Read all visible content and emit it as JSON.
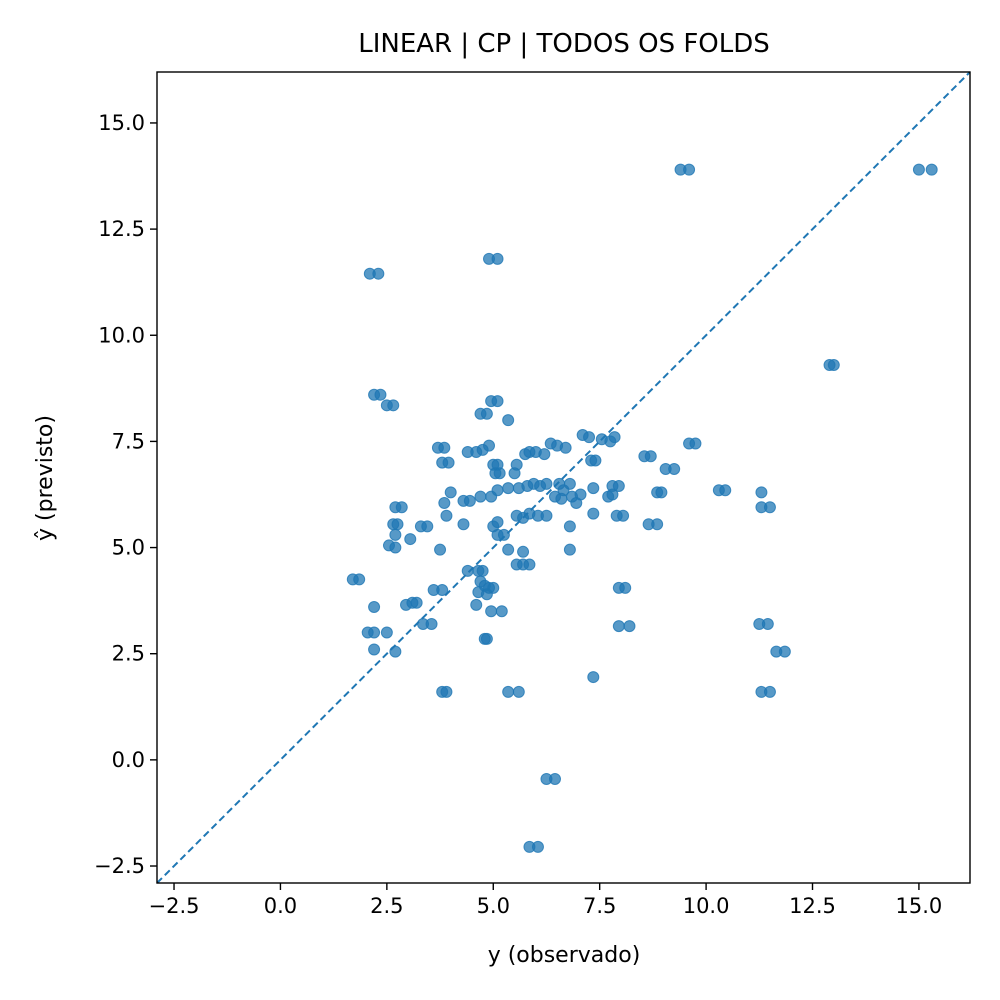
{
  "chart_data": {
    "type": "scatter",
    "title": "LINEAR | CP | TODOS OS FOLDS",
    "xlabel": "y (observado)",
    "ylabel": "ŷ (previsto)",
    "xlim": [
      -2.9,
      16.2
    ],
    "ylim": [
      -2.9,
      16.2
    ],
    "xticks": [
      -2.5,
      0.0,
      2.5,
      5.0,
      7.5,
      10.0,
      12.5,
      15.0
    ],
    "xtick_labels": [
      "−2.5",
      "0.0",
      "2.5",
      "5.0",
      "7.5",
      "10.0",
      "12.5",
      "15.0"
    ],
    "yticks": [
      -2.5,
      0.0,
      2.5,
      5.0,
      7.5,
      10.0,
      12.5,
      15.0
    ],
    "ytick_labels": [
      "−2.5",
      "0.0",
      "2.5",
      "5.0",
      "7.5",
      "10.0",
      "12.5",
      "15.0"
    ],
    "grid": false,
    "reference_line": "y = x (dashed)",
    "point_color": "#1f77b4",
    "points": [
      [
        15.0,
        13.9
      ],
      [
        15.3,
        13.9
      ],
      [
        9.4,
        13.9
      ],
      [
        9.6,
        13.9
      ],
      [
        2.1,
        11.45
      ],
      [
        2.3,
        11.45
      ],
      [
        4.9,
        11.8
      ],
      [
        5.1,
        11.8
      ],
      [
        12.9,
        9.3
      ],
      [
        13.0,
        9.3
      ],
      [
        2.2,
        8.6
      ],
      [
        2.35,
        8.6
      ],
      [
        2.5,
        8.35
      ],
      [
        2.65,
        8.35
      ],
      [
        4.7,
        8.15
      ],
      [
        4.85,
        8.15
      ],
      [
        4.95,
        8.45
      ],
      [
        5.1,
        8.45
      ],
      [
        5.35,
        8.0
      ],
      [
        3.7,
        7.35
      ],
      [
        3.85,
        7.35
      ],
      [
        3.8,
        7.0
      ],
      [
        3.95,
        7.0
      ],
      [
        4.4,
        7.25
      ],
      [
        4.6,
        7.25
      ],
      [
        4.75,
        7.3
      ],
      [
        4.9,
        7.4
      ],
      [
        5.0,
        6.95
      ],
      [
        5.1,
        6.95
      ],
      [
        5.05,
        6.75
      ],
      [
        5.15,
        6.75
      ],
      [
        5.55,
        6.95
      ],
      [
        5.5,
        6.75
      ],
      [
        5.75,
        7.2
      ],
      [
        5.85,
        7.25
      ],
      [
        6.0,
        7.25
      ],
      [
        6.2,
        7.2
      ],
      [
        6.35,
        7.45
      ],
      [
        6.5,
        7.4
      ],
      [
        6.7,
        7.35
      ],
      [
        7.1,
        7.65
      ],
      [
        7.25,
        7.6
      ],
      [
        7.55,
        7.55
      ],
      [
        7.75,
        7.5
      ],
      [
        7.85,
        7.6
      ],
      [
        7.3,
        7.05
      ],
      [
        7.4,
        7.05
      ],
      [
        8.55,
        7.15
      ],
      [
        8.7,
        7.15
      ],
      [
        9.05,
        6.85
      ],
      [
        9.25,
        6.85
      ],
      [
        9.6,
        7.45
      ],
      [
        9.75,
        7.45
      ],
      [
        4.0,
        6.3
      ],
      [
        4.3,
        6.1
      ],
      [
        4.45,
        6.1
      ],
      [
        3.85,
        6.05
      ],
      [
        4.7,
        6.2
      ],
      [
        4.95,
        6.2
      ],
      [
        5.1,
        6.35
      ],
      [
        5.35,
        6.4
      ],
      [
        5.6,
        6.4
      ],
      [
        5.8,
        6.45
      ],
      [
        5.95,
        6.5
      ],
      [
        6.1,
        6.45
      ],
      [
        6.25,
        6.5
      ],
      [
        6.55,
        6.5
      ],
      [
        6.65,
        6.35
      ],
      [
        6.45,
        6.2
      ],
      [
        6.6,
        6.15
      ],
      [
        6.85,
        6.2
      ],
      [
        7.05,
        6.25
      ],
      [
        6.8,
        6.5
      ],
      [
        6.95,
        6.05
      ],
      [
        7.35,
        6.4
      ],
      [
        7.7,
        6.2
      ],
      [
        7.8,
        6.25
      ],
      [
        7.8,
        6.45
      ],
      [
        7.95,
        6.45
      ],
      [
        8.85,
        6.3
      ],
      [
        8.95,
        6.3
      ],
      [
        10.3,
        6.35
      ],
      [
        10.45,
        6.35
      ],
      [
        11.3,
        6.3
      ],
      [
        11.3,
        5.95
      ],
      [
        11.5,
        5.95
      ],
      [
        2.7,
        5.95
      ],
      [
        2.85,
        5.95
      ],
      [
        2.65,
        5.55
      ],
      [
        2.75,
        5.55
      ],
      [
        2.7,
        5.3
      ],
      [
        3.05,
        5.2
      ],
      [
        3.3,
        5.5
      ],
      [
        3.45,
        5.5
      ],
      [
        3.9,
        5.75
      ],
      [
        2.55,
        5.05
      ],
      [
        2.7,
        5.0
      ],
      [
        3.75,
        4.95
      ],
      [
        4.3,
        5.55
      ],
      [
        5.0,
        5.5
      ],
      [
        5.1,
        5.6
      ],
      [
        5.1,
        5.3
      ],
      [
        5.25,
        5.3
      ],
      [
        5.55,
        5.75
      ],
      [
        5.7,
        5.7
      ],
      [
        5.85,
        5.8
      ],
      [
        6.05,
        5.75
      ],
      [
        6.25,
        5.75
      ],
      [
        5.35,
        4.95
      ],
      [
        5.7,
        4.9
      ],
      [
        5.55,
        4.6
      ],
      [
        5.7,
        4.6
      ],
      [
        5.85,
        4.6
      ],
      [
        6.8,
        5.5
      ],
      [
        6.8,
        4.95
      ],
      [
        7.35,
        5.8
      ],
      [
        7.9,
        5.75
      ],
      [
        8.05,
        5.75
      ],
      [
        8.65,
        5.55
      ],
      [
        8.85,
        5.55
      ],
      [
        1.7,
        4.25
      ],
      [
        1.85,
        4.25
      ],
      [
        3.6,
        4.0
      ],
      [
        3.8,
        4.0
      ],
      [
        4.4,
        4.45
      ],
      [
        4.65,
        4.45
      ],
      [
        4.75,
        4.45
      ],
      [
        4.7,
        4.2
      ],
      [
        4.8,
        4.1
      ],
      [
        4.65,
        3.95
      ],
      [
        4.9,
        4.05
      ],
      [
        5.0,
        4.05
      ],
      [
        4.85,
        3.9
      ],
      [
        2.2,
        3.6
      ],
      [
        2.95,
        3.65
      ],
      [
        3.1,
        3.7
      ],
      [
        3.2,
        3.7
      ],
      [
        3.35,
        3.2
      ],
      [
        3.55,
        3.2
      ],
      [
        4.6,
        3.65
      ],
      [
        4.95,
        3.5
      ],
      [
        5.2,
        3.5
      ],
      [
        2.05,
        3.0
      ],
      [
        2.2,
        3.0
      ],
      [
        2.5,
        3.0
      ],
      [
        4.8,
        2.85
      ],
      [
        4.85,
        2.85
      ],
      [
        7.95,
        4.05
      ],
      [
        8.1,
        4.05
      ],
      [
        7.95,
        3.15
      ],
      [
        8.2,
        3.15
      ],
      [
        11.25,
        3.2
      ],
      [
        11.45,
        3.2
      ],
      [
        11.65,
        2.55
      ],
      [
        11.85,
        2.55
      ],
      [
        2.2,
        2.6
      ],
      [
        2.7,
        2.55
      ],
      [
        7.35,
        1.95
      ],
      [
        3.8,
        1.6
      ],
      [
        3.9,
        1.6
      ],
      [
        5.35,
        1.6
      ],
      [
        5.6,
        1.6
      ],
      [
        11.3,
        1.6
      ],
      [
        11.5,
        1.6
      ],
      [
        6.25,
        -0.45
      ],
      [
        6.45,
        -0.45
      ],
      [
        5.85,
        -2.05
      ],
      [
        6.05,
        -2.05
      ]
    ]
  }
}
